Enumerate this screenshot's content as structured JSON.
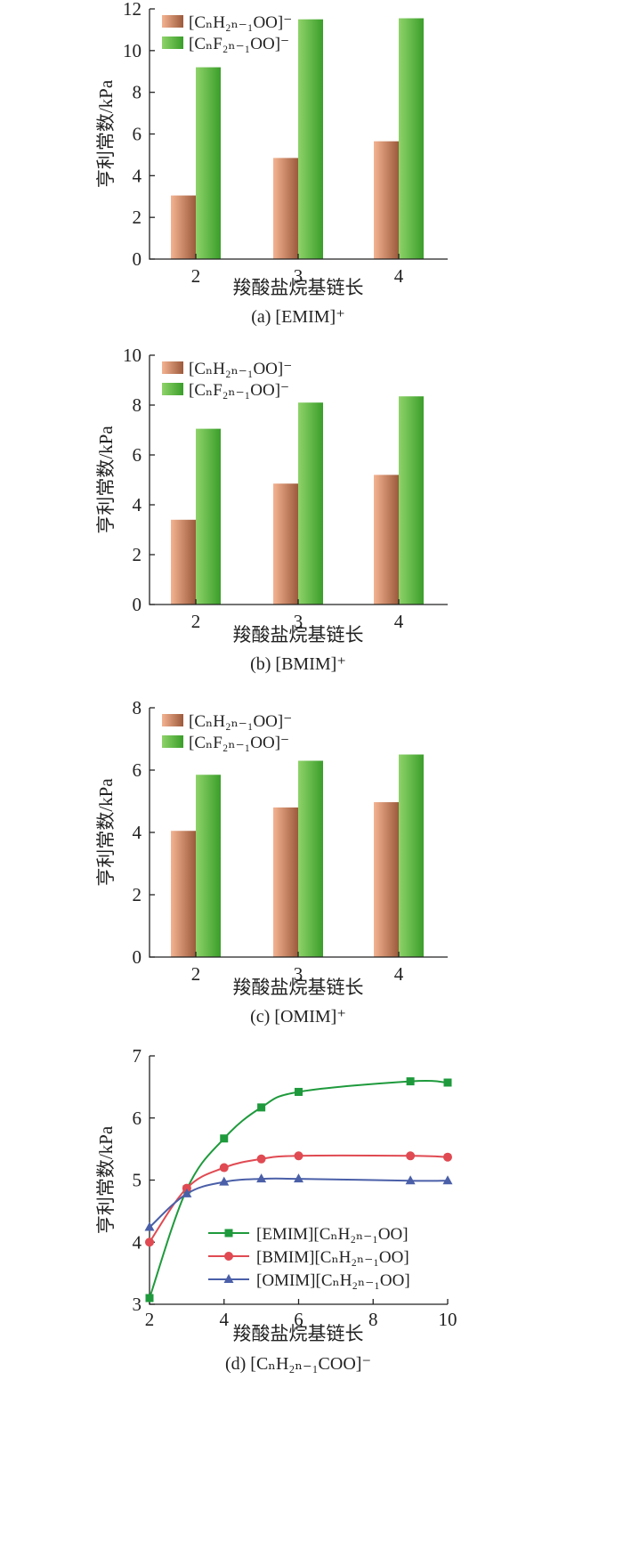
{
  "colors": {
    "orange_light": "#f4b391",
    "orange_dark": "#9c5a3c",
    "green_light": "#8fd36a",
    "green_dark": "#3a9e2a",
    "emim": "#1e9a3c",
    "bmim": "#e04a52",
    "omim": "#4a5fa8"
  },
  "chart_data": [
    {
      "type": "bar",
      "caption": "(a) [EMIM]⁺",
      "xlabel": "羧酸盐烷基链长",
      "ylabel": "亨利常数/kPa",
      "categories": [
        "2",
        "3",
        "4"
      ],
      "ylim": [
        0,
        12
      ],
      "yticks": [
        "0",
        "2",
        "4",
        "6",
        "8",
        "10",
        "12"
      ],
      "legend_position": "top-left",
      "series": [
        {
          "name": "[CₙH₂ₙ₋₁OO]⁻",
          "values": [
            3.05,
            4.85,
            5.65
          ],
          "color": "orange"
        },
        {
          "name": "[CₙF₂ₙ₋₁OO]⁻",
          "values": [
            9.2,
            11.5,
            11.55
          ],
          "color": "green"
        }
      ]
    },
    {
      "type": "bar",
      "caption": "(b) [BMIM]⁺",
      "xlabel": "羧酸盐烷基链长",
      "ylabel": "亨利常数/kPa",
      "categories": [
        "2",
        "3",
        "4"
      ],
      "ylim": [
        0,
        10
      ],
      "yticks": [
        "0",
        "2",
        "4",
        "6",
        "8",
        "10"
      ],
      "legend_position": "top-left",
      "series": [
        {
          "name": "[CₙH₂ₙ₋₁OO]⁻",
          "values": [
            3.4,
            4.85,
            5.2
          ],
          "color": "orange"
        },
        {
          "name": "[CₙF₂ₙ₋₁OO]⁻",
          "values": [
            7.05,
            8.1,
            8.35
          ],
          "color": "green"
        }
      ]
    },
    {
      "type": "bar",
      "caption": "(c) [OMIM]⁺",
      "xlabel": "羧酸盐烷基链长",
      "ylabel": "亨利常数/kPa",
      "categories": [
        "2",
        "3",
        "4"
      ],
      "ylim": [
        0,
        8
      ],
      "yticks": [
        "0",
        "2",
        "4",
        "6",
        "8"
      ],
      "legend_position": "top-left",
      "series": [
        {
          "name": "[CₙH₂ₙ₋₁OO]⁻",
          "values": [
            4.05,
            4.8,
            4.97
          ],
          "color": "orange"
        },
        {
          "name": "[CₙF₂ₙ₋₁OO]⁻",
          "values": [
            5.85,
            6.3,
            6.5
          ],
          "color": "green"
        }
      ]
    },
    {
      "type": "line",
      "caption": "(d) [CₙH₂ₙ₋₁COO]⁻",
      "xlabel": "羧酸盐烷基链长",
      "ylabel": "亨利常数/kPa",
      "x": [
        2,
        3,
        4,
        5,
        6,
        9,
        10
      ],
      "xlim": [
        2,
        10
      ],
      "ylim": [
        3,
        7
      ],
      "xticks": [
        "2",
        "4",
        "6",
        "8",
        "10"
      ],
      "yticks": [
        "3",
        "4",
        "5",
        "6",
        "7"
      ],
      "legend_position": "bottom-center",
      "series": [
        {
          "name": "[EMIM][CₙH₂ₙ₋₁OO]",
          "marker": "square",
          "color": "emim",
          "values": [
            3.1,
            4.85,
            5.67,
            6.17,
            6.42,
            6.59,
            6.57
          ]
        },
        {
          "name": "[BMIM][CₙH₂ₙ₋₁OO]",
          "marker": "circle",
          "color": "bmim",
          "values": [
            4.0,
            4.87,
            5.2,
            5.34,
            5.39,
            5.39,
            5.37
          ]
        },
        {
          "name": "[OMIM][CₙH₂ₙ₋₁OO]",
          "marker": "triangle",
          "color": "omim",
          "values": [
            4.24,
            4.78,
            4.97,
            5.02,
            5.02,
            4.99,
            4.99
          ]
        }
      ]
    }
  ]
}
